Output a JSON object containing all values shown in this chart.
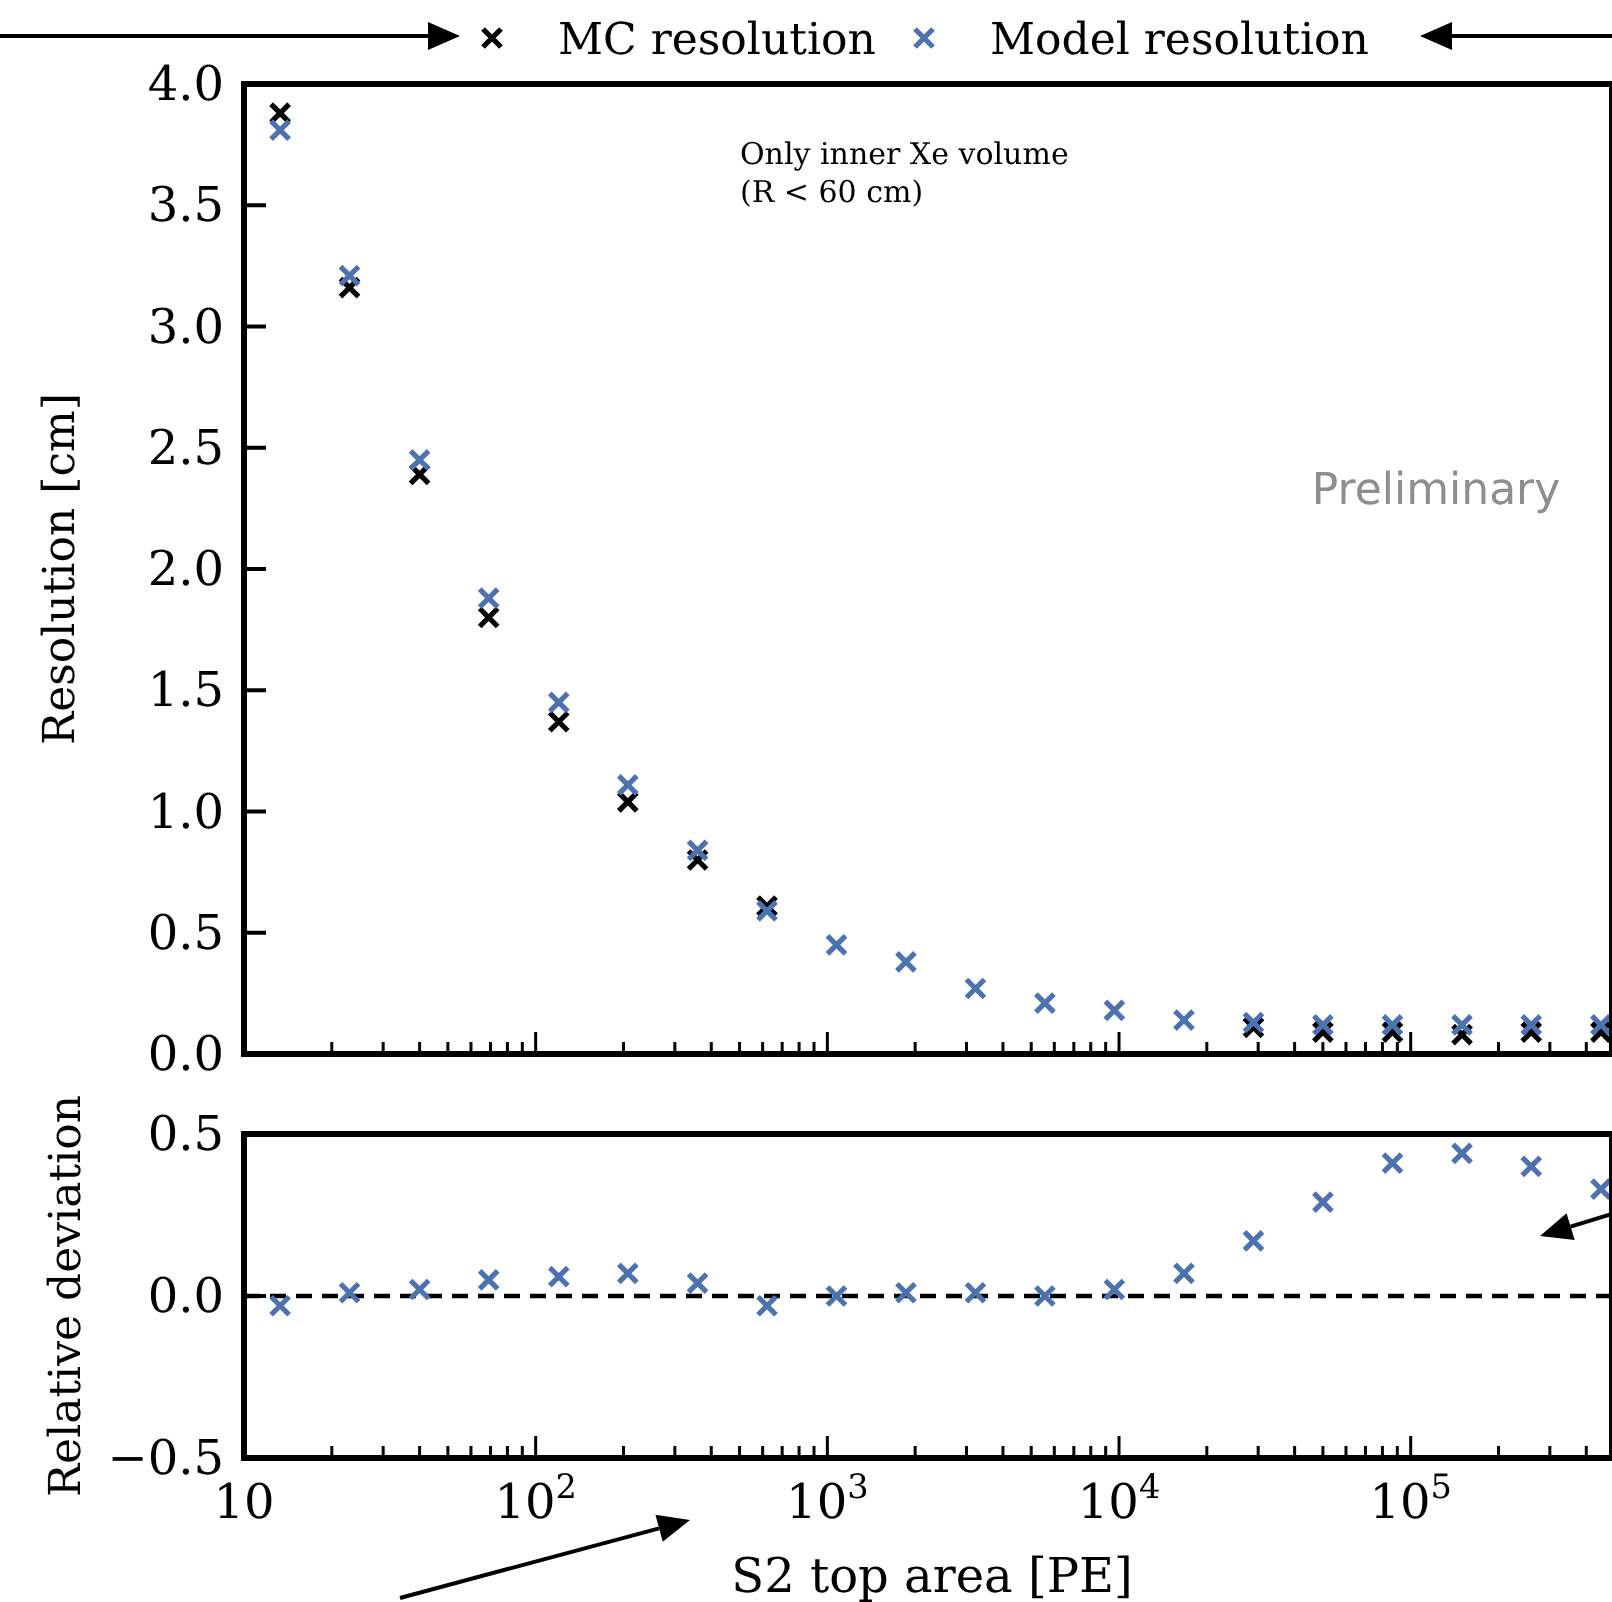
{
  "chart_data": [
    {
      "type": "scatter",
      "ylabel": "Resolution [cm]",
      "x": [
        13.3,
        23,
        40,
        69,
        120,
        207,
        359,
        621,
        1075,
        1860,
        3220,
        5570,
        9640,
        16700,
        28900,
        50000,
        86600,
        150000,
        259000,
        449000
      ],
      "series": [
        {
          "name": "MC resolution",
          "color": "#000000",
          "values": [
            3.88,
            3.16,
            2.39,
            1.8,
            1.37,
            1.04,
            0.8,
            0.61,
            null,
            null,
            null,
            null,
            null,
            null,
            0.11,
            0.09,
            0.09,
            0.08,
            0.09,
            0.09
          ]
        },
        {
          "name": "Model resolution",
          "color": "#4c72b0",
          "values": [
            3.81,
            3.21,
            2.45,
            1.88,
            1.45,
            1.11,
            0.84,
            0.59,
            0.45,
            0.38,
            0.27,
            0.21,
            0.18,
            0.14,
            0.13,
            0.12,
            0.12,
            0.12,
            0.12,
            0.12
          ]
        }
      ],
      "marker": "cross",
      "log": "x",
      "legend": "top",
      "tick_labels": "y",
      "grid": false,
      "xlim": [
        10,
        490000
      ],
      "xticks": [
        {
          "value": 10,
          "label": null
        },
        {
          "value": 20,
          "label": null
        },
        {
          "value": 30,
          "label": null
        },
        {
          "value": 40,
          "label": null
        },
        {
          "value": 50,
          "label": null
        },
        {
          "value": 60,
          "label": null
        },
        {
          "value": 70,
          "label": null
        },
        {
          "value": 80,
          "label": null
        },
        {
          "value": 90,
          "label": null
        },
        {
          "value": 100,
          "label": null
        },
        {
          "value": 200,
          "label": null
        },
        {
          "value": 300,
          "label": null
        },
        {
          "value": 400,
          "label": null
        },
        {
          "value": 500,
          "label": null
        },
        {
          "value": 600,
          "label": null
        },
        {
          "value": 700,
          "label": null
        },
        {
          "value": 800,
          "label": null
        },
        {
          "value": 900,
          "label": null
        },
        {
          "value": 1000,
          "label": null
        },
        {
          "value": 2000,
          "label": null
        },
        {
          "value": 3000,
          "label": null
        },
        {
          "value": 4000,
          "label": null
        },
        {
          "value": 5000,
          "label": null
        },
        {
          "value": 6000,
          "label": null
        },
        {
          "value": 7000,
          "label": null
        },
        {
          "value": 8000,
          "label": null
        },
        {
          "value": 9000,
          "label": null
        },
        {
          "value": 10000,
          "label": null
        },
        {
          "value": 20000,
          "label": null
        },
        {
          "value": 30000,
          "label": null
        },
        {
          "value": 40000,
          "label": null
        },
        {
          "value": 50000,
          "label": null
        },
        {
          "value": 60000,
          "label": null
        },
        {
          "value": 70000,
          "label": null
        },
        {
          "value": 80000,
          "label": null
        },
        {
          "value": 90000,
          "label": null
        },
        {
          "value": 100000,
          "label": null
        },
        {
          "value": 200000,
          "label": null
        },
        {
          "value": 300000,
          "label": null
        },
        {
          "value": 400000,
          "label": null
        }
      ],
      "ylim": [
        0,
        4
      ],
      "yticks": [
        {
          "value": 0,
          "label": "0.0"
        },
        0.5,
        {
          "value": 1,
          "label": "1.0"
        },
        1.5,
        {
          "value": 2,
          "label": "2.0"
        },
        2.5,
        {
          "value": 3,
          "label": "3.0"
        },
        3.5,
        {
          "value": 4,
          "label": "4.0"
        }
      ],
      "annotations": [
        "Only inner Xe volume\n(R < 60 cm)",
        "Preliminary"
      ]
    },
    {
      "type": "scatter",
      "ylabel": "Relative deviation",
      "xlabel": "S2 top area [PE]",
      "x": [
        13.3,
        23,
        40,
        69,
        120,
        207,
        359,
        621,
        1075,
        1860,
        3220,
        5570,
        9640,
        16700,
        28900,
        50000,
        86600,
        150000,
        259000,
        449000
      ],
      "series": [
        {
          "color": "#4c72b0",
          "values": [
            -0.03,
            0.01,
            0.02,
            0.05,
            0.06,
            0.07,
            0.04,
            -0.03,
            0,
            0.01,
            0.01,
            0,
            0.02,
            0.07,
            0.17,
            0.29,
            0.41,
            0.44,
            0.4,
            0.33
          ]
        }
      ],
      "marker": "cross",
      "log": "x",
      "grid": false,
      "xlim": [
        10,
        490000
      ],
      "xticks": [
        10,
        {
          "value": 20,
          "label": null
        },
        {
          "value": 30,
          "label": null
        },
        {
          "value": 40,
          "label": null
        },
        {
          "value": 50,
          "label": null
        },
        {
          "value": 60,
          "label": null
        },
        {
          "value": 70,
          "label": null
        },
        {
          "value": 80,
          "label": null
        },
        {
          "value": 90,
          "label": null
        },
        {
          "value": 100,
          "label": "10$^{2}$"
        },
        {
          "value": 200,
          "label": null
        },
        {
          "value": 300,
          "label": null
        },
        {
          "value": 400,
          "label": null
        },
        {
          "value": 500,
          "label": null
        },
        {
          "value": 600,
          "label": null
        },
        {
          "value": 700,
          "label": null
        },
        {
          "value": 800,
          "label": null
        },
        {
          "value": 900,
          "label": null
        },
        {
          "value": 1000,
          "label": "10$^{3}$"
        },
        {
          "value": 2000,
          "label": null
        },
        {
          "value": 3000,
          "label": null
        },
        {
          "value": 4000,
          "label": null
        },
        {
          "value": 5000,
          "label": null
        },
        {
          "value": 6000,
          "label": null
        },
        {
          "value": 7000,
          "label": null
        },
        {
          "value": 8000,
          "label": null
        },
        {
          "value": 9000,
          "label": null
        },
        {
          "value": 10000,
          "label": "10$^{4}$"
        },
        {
          "value": 20000,
          "label": null
        },
        {
          "value": 30000,
          "label": null
        },
        {
          "value": 40000,
          "label": null
        },
        {
          "value": 50000,
          "label": null
        },
        {
          "value": 60000,
          "label": null
        },
        {
          "value": 70000,
          "label": null
        },
        {
          "value": 80000,
          "label": null
        },
        {
          "value": 90000,
          "label": null
        },
        {
          "value": 100000,
          "label": "10$^{5}$"
        },
        {
          "value": 200000,
          "label": null
        },
        {
          "value": 300000,
          "label": null
        },
        {
          "value": 400000,
          "label": null
        }
      ],
      "ylim": [
        -0.5,
        0.5
      ],
      "yticks": [
        {
          "value": -0.5,
          "label": "−0.5"
        },
        {
          "value": 0,
          "label": "0.0"
        },
        0.5
      ],
      "ref_lines": [
        {
          "axis": "y",
          "value": 0,
          "color": "#000000",
          "line_style": "dashed"
        }
      ]
    }
  ]
}
